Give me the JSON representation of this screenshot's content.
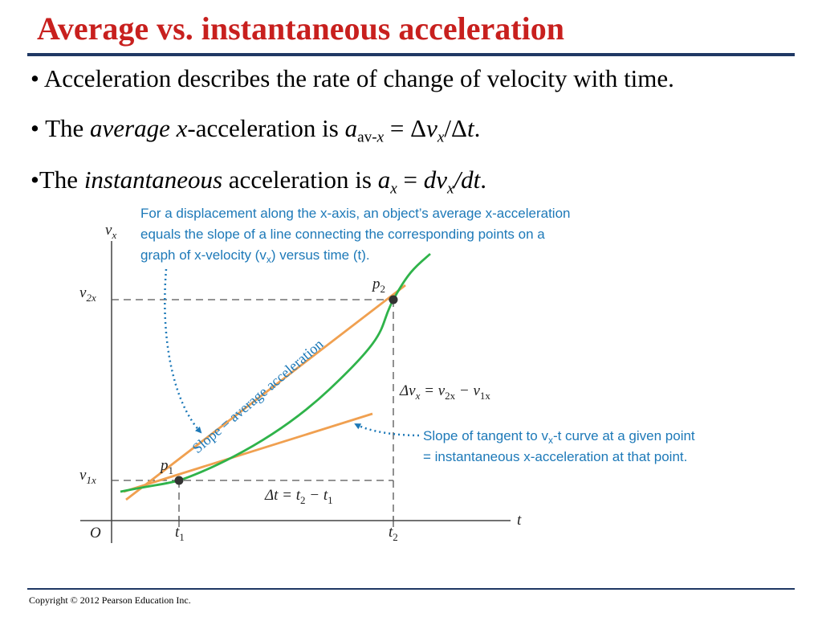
{
  "title": "Average vs. instantaneous acceleration",
  "bullets": {
    "b1": {
      "mark": "•",
      "text": "Acceleration describes the rate of change of velocity with time."
    },
    "b2": {
      "mark": "•",
      "pre": "The",
      "avg_word": "average",
      "x_word": "x",
      "post": "-acceleration is",
      "a": "a",
      "sub": "av-",
      "sub_x": "x",
      "eq": " = Δ",
      "v": "v",
      "v_sub": "x",
      "slash": "/Δ",
      "t": "t",
      "end": "."
    },
    "b3": {
      "mark": "•",
      "pre": "The",
      "inst_word": "instantaneous",
      "post": "acceleration is",
      "a": "a",
      "a_sub": "x",
      "eq": " = ",
      "dv": "dv",
      "dv_sub": "x",
      "slash": "/",
      "dt": "dt",
      "end": "."
    }
  },
  "diagram": {
    "axis_y_label": "v",
    "axis_y_sub": "x",
    "axis_x_label": "t",
    "origin": "O",
    "t1": "t",
    "t1_sub": "1",
    "t2": "t",
    "t2_sub": "2",
    "v1": "v",
    "v1_sub": "1x",
    "v2": "v",
    "v2_sub": "2x",
    "p1": "p",
    "p1_sub": "1",
    "p2": "p",
    "p2_sub": "2",
    "delta_v": "Δv",
    "delta_v_sub": "x",
    "delta_v_eq": " = v",
    "delta_v_v2": "2x",
    "delta_v_minus": " − v",
    "delta_v_v1": "1x",
    "delta_t": "Δt = t",
    "delta_t_2": "2",
    "delta_t_minus": " − t",
    "delta_t_1": "1",
    "slope_label": "Slope = average acceleration",
    "note_top_1": "For a displacement along the x-axis, an object’s average x-acceleration",
    "note_top_2": "equals the slope of a line connecting the corresponding points on a",
    "note_top_3": "graph of x-velocity (v",
    "note_top_3_sub": "x",
    "note_top_3_end": ") versus time (t).",
    "note_right_1": "Slope of tangent to v",
    "note_right_1_sub": "x",
    "note_right_1_end": "-t curve at a given point",
    "note_right_2": "= instantaneous x-acceleration at that point.",
    "colors": {
      "curve": "#2fb34a",
      "chord": "#f0a050",
      "tangent": "#f0a050",
      "note": "#1d79b8",
      "axis": "#444444",
      "point": "#333333"
    }
  },
  "footer": {
    "copyright": "Copyright © 2012 Pearson Education Inc."
  }
}
